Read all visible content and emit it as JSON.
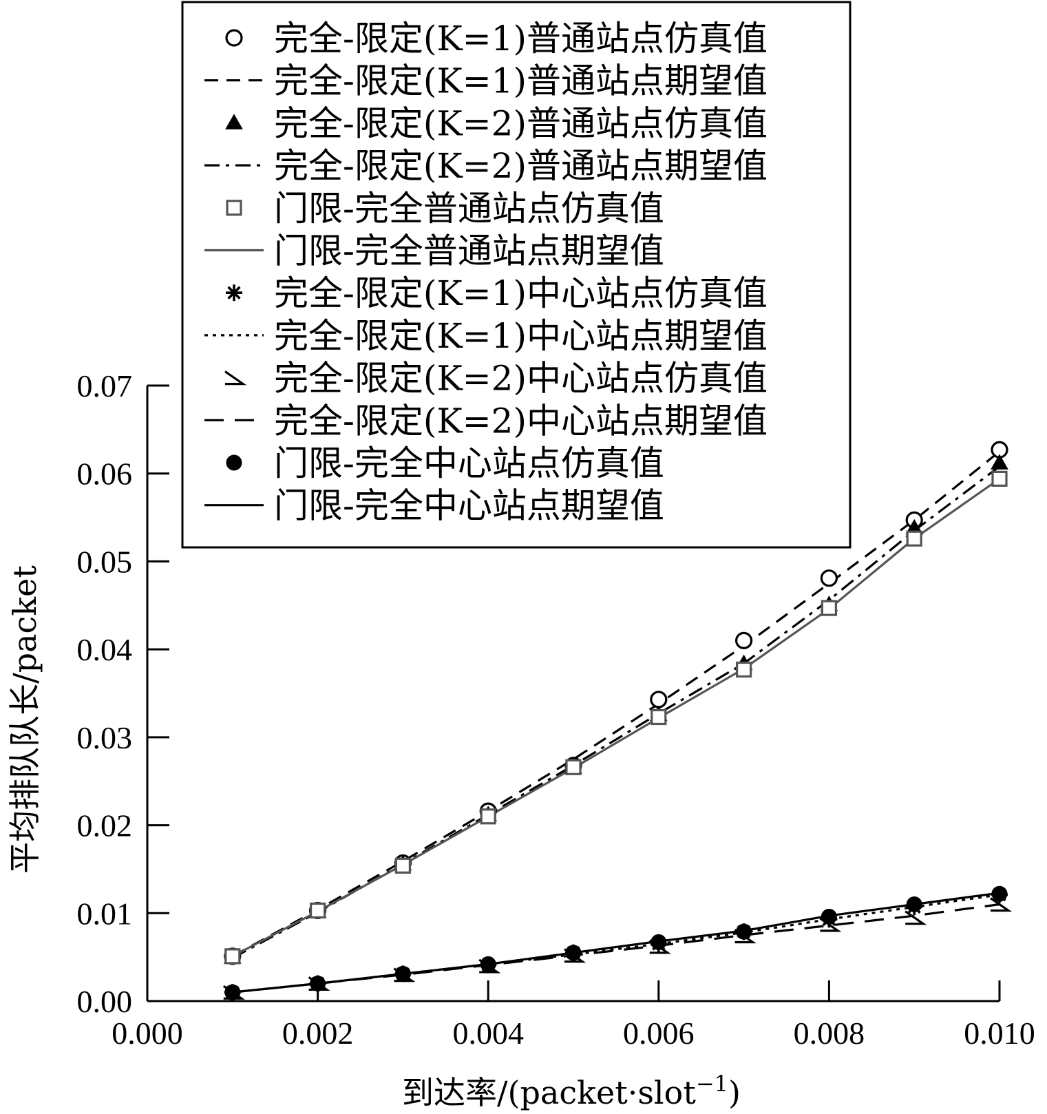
{
  "chart_data": {
    "type": "line",
    "title": "",
    "xlabel": "到达率/(packet·slot",
    "xlabel_sup": "−1",
    "xlabel_close": ")",
    "ylabel": "平均排队队长/packet",
    "xlim": [
      0.0,
      0.01
    ],
    "ylim": [
      0.0,
      0.07
    ],
    "x_ticks": [
      "0.000",
      "0.002",
      "0.004",
      "0.006",
      "0.008",
      "0.010"
    ],
    "y_ticks": [
      "0.00",
      "0.01",
      "0.02",
      "0.03",
      "0.04",
      "0.05",
      "0.06",
      "0.07"
    ],
    "grid": false,
    "legend_position": "top",
    "x": [
      0.001,
      0.002,
      0.003,
      0.004,
      0.005,
      0.006,
      0.007,
      0.008,
      0.009,
      0.01
    ],
    "series": [
      {
        "name": "完全-限定(K=1)普通站点仿真值",
        "marker": "circle-open",
        "line": "none",
        "color": "#000000",
        "values": [
          0.0051,
          0.0103,
          0.0157,
          0.0216,
          0.0268,
          0.0343,
          0.041,
          0.0481,
          0.0547,
          0.0627
        ]
      },
      {
        "name": "完全-限定(K=1)普通站点期望值",
        "marker": "none",
        "line": "dashed",
        "color": "#000000",
        "values": [
          0.0051,
          0.0104,
          0.0159,
          0.0216,
          0.0275,
          0.0338,
          0.0404,
          0.0475,
          0.0547,
          0.0625
        ]
      },
      {
        "name": "完全-限定(K=2)普通站点仿真值",
        "marker": "triangle-filled",
        "line": "none",
        "color": "#000000",
        "values": [
          0.005,
          0.0102,
          0.0156,
          0.0212,
          0.0266,
          0.0326,
          0.0384,
          0.0451,
          0.0538,
          0.0612
        ]
      },
      {
        "name": "完全-限定(K=2)普通站点期望值",
        "marker": "none",
        "line": "dashdot",
        "color": "#000000",
        "values": [
          0.0049,
          0.0101,
          0.0156,
          0.0212,
          0.0268,
          0.0327,
          0.0384,
          0.0456,
          0.0535,
          0.0608
        ]
      },
      {
        "name": "门限-完全普通站点仿真值",
        "marker": "square-open",
        "line": "none",
        "color": "#555555",
        "values": [
          0.0051,
          0.0103,
          0.0154,
          0.021,
          0.0266,
          0.0323,
          0.0377,
          0.0447,
          0.0526,
          0.0594
        ]
      },
      {
        "name": "门限-完全普通站点期望值",
        "marker": "none",
        "line": "solid",
        "color": "#555555",
        "values": [
          0.0051,
          0.0102,
          0.0155,
          0.021,
          0.0265,
          0.0322,
          0.0378,
          0.0446,
          0.0526,
          0.0594
        ]
      },
      {
        "name": "完全-限定(K=1)中心站点仿真值",
        "marker": "asterisk",
        "line": "none",
        "color": "#000000",
        "values": [
          0.001,
          0.002,
          0.0031,
          0.0041,
          0.0055,
          0.0065,
          0.0079,
          0.0093,
          0.0107,
          0.0121
        ]
      },
      {
        "name": "完全-限定(K=1)中心站点期望值",
        "marker": "none",
        "line": "dotted",
        "color": "#000000",
        "values": [
          0.001,
          0.002,
          0.0031,
          0.0042,
          0.0053,
          0.0065,
          0.0078,
          0.0093,
          0.0107,
          0.0121
        ]
      },
      {
        "name": "完全-限定(K=2)中心站点仿真值",
        "marker": "triangle-open",
        "line": "none",
        "color": "#000000",
        "values": [
          0.001,
          0.002,
          0.003,
          0.004,
          0.0052,
          0.0062,
          0.0074,
          0.0087,
          0.0095,
          0.011
        ]
      },
      {
        "name": "完全-限定(K=2)中心站点期望值",
        "marker": "none",
        "line": "longdash",
        "color": "#000000",
        "values": [
          0.001,
          0.002,
          0.003,
          0.0041,
          0.0052,
          0.0063,
          0.0075,
          0.0086,
          0.0097,
          0.011
        ]
      },
      {
        "name": "门限-完全中心站点仿真值",
        "marker": "circle-filled",
        "line": "none",
        "color": "#000000",
        "values": [
          0.001,
          0.002,
          0.0031,
          0.0042,
          0.0055,
          0.0067,
          0.0079,
          0.0096,
          0.011,
          0.0122
        ]
      },
      {
        "name": "门限-完全中心站点期望值",
        "marker": "none",
        "line": "solid",
        "color": "#000000",
        "values": [
          0.001,
          0.002,
          0.0031,
          0.0042,
          0.0055,
          0.0068,
          0.008,
          0.0097,
          0.011,
          0.0123
        ]
      }
    ]
  }
}
